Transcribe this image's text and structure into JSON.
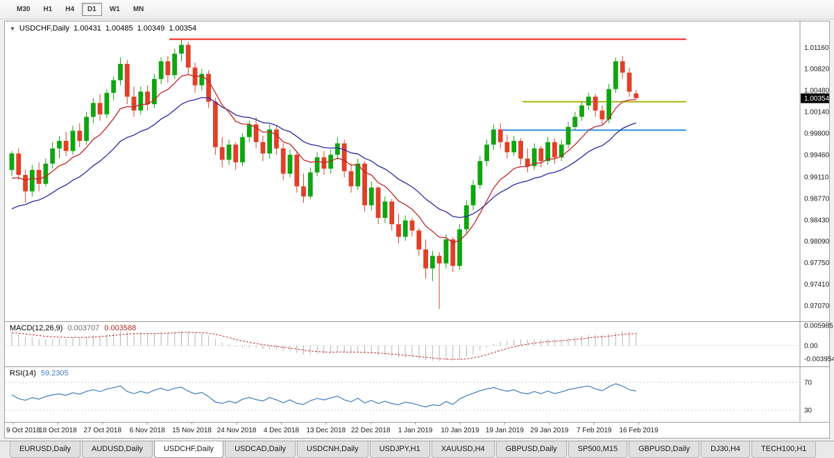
{
  "toolbar": {
    "timeframes": [
      "M30",
      "H1",
      "H4",
      "D1",
      "W1",
      "MN"
    ],
    "active_timeframe": "D1"
  },
  "icons": {
    "chart_marker": "▼"
  },
  "chart": {
    "symbol": "USDCHF,Daily",
    "ohlc": {
      "open": "1.00431",
      "high": "1.00485",
      "low": "1.00349",
      "close": "1.00354"
    },
    "current_price": "1.00354",
    "price_axis": [
      "1.01160",
      "1.00820",
      "1.00480",
      "1.00140",
      "0.99800",
      "0.99460",
      "0.99110",
      "0.98770",
      "0.98430",
      "0.98090",
      "0.97750",
      "0.97410",
      "0.97070"
    ],
    "date_axis": [
      "9 Oct 2018",
      "18 Oct 2018",
      "27 Oct 2018",
      "6 Nov 2018",
      "15 Nov 2018",
      "24 Nov 2018",
      "4 Dec 2018",
      "13 Dec 2018",
      "22 Dec 2018",
      "1 Jan 2019",
      "10 Jan 2019",
      "19 Jan 2019",
      "29 Jan 2019",
      "7 Feb 2019",
      "16 Feb 2019"
    ]
  },
  "indicators": {
    "macd": {
      "label": "MACD(12,26,9)",
      "value_main": "0.003707",
      "value_signal": "0.003588",
      "axis": [
        "0.005985",
        "0.00",
        "-0.003954"
      ]
    },
    "rsi": {
      "label": "RSI(14)",
      "value": "59.2305",
      "axis": [
        "70",
        "30"
      ]
    }
  },
  "tabs": {
    "items": [
      "EURUSD,Daily",
      "AUDUSD,Daily",
      "USDCHF,Daily",
      "USDCAD,Daily",
      "USDCNH,Daily",
      "USDJPY,H1",
      "XAUUSD,H4",
      "GBPUSD,Daily",
      "SP500,M15",
      "GBPUSD,Daily",
      "DJ30,H4",
      "TECH100,H1"
    ],
    "active_index": 2
  },
  "colors": {
    "bull": "#10a510",
    "bear": "#df4028",
    "macd_hist": "#b4b4b4",
    "macd_signal": "#c03030",
    "rsi": "#3f7cba",
    "price_tag_bg": "#000000",
    "price_tag_text": "#ffffff"
  },
  "chart_data": {
    "type": "candlestick",
    "symbol": "USDCHF",
    "timeframe": "Daily",
    "title": "USDCHF,Daily 1.00431 1.00485 1.00349 1.00354",
    "price_range": {
      "top": 1.0135,
      "bottom": 0.969
    },
    "candles": [
      [
        "2018-10-09",
        0.9922,
        0.9952,
        0.9912,
        0.9948
      ],
      [
        "2018-10-10",
        0.9948,
        0.9956,
        0.9906,
        0.9914
      ],
      [
        "2018-10-11",
        0.9914,
        0.9922,
        0.987,
        0.9888
      ],
      [
        "2018-10-12",
        0.9888,
        0.993,
        0.988,
        0.9922
      ],
      [
        "2018-10-15",
        0.9922,
        0.9934,
        0.9888,
        0.99
      ],
      [
        "2018-10-16",
        0.99,
        0.994,
        0.9896,
        0.9932
      ],
      [
        "2018-10-17",
        0.9932,
        0.9966,
        0.9924,
        0.9956
      ],
      [
        "2018-10-18",
        0.9956,
        0.9976,
        0.994,
        0.9968
      ],
      [
        "2018-10-19",
        0.9968,
        0.9982,
        0.9944,
        0.9952
      ],
      [
        "2018-10-22",
        0.9952,
        0.9992,
        0.9946,
        0.9984
      ],
      [
        "2018-10-23",
        0.9984,
        0.9996,
        0.9958,
        0.9968
      ],
      [
        "2018-10-24",
        0.9968,
        1.0014,
        0.9962,
        1.0006
      ],
      [
        "2018-10-25",
        1.0006,
        1.0036,
        0.9996,
        1.0028
      ],
      [
        "2018-10-26",
        1.0028,
        1.0042,
        1.0,
        1.001
      ],
      [
        "2018-10-29",
        1.001,
        1.005,
        1.0004,
        1.0044
      ],
      [
        "2018-10-30",
        1.0044,
        1.007,
        1.0032,
        1.0064
      ],
      [
        "2018-10-31",
        1.0064,
        1.01,
        1.0056,
        1.009
      ],
      [
        "2018-11-01",
        1.009,
        1.0096,
        1.0026,
        1.0038
      ],
      [
        "2018-11-02",
        1.0038,
        1.0054,
        1.0006,
        1.0016
      ],
      [
        "2018-11-05",
        1.0016,
        1.0054,
        1.001,
        1.0046
      ],
      [
        "2018-11-06",
        1.0046,
        1.0056,
        1.0016,
        1.0026
      ],
      [
        "2018-11-07",
        1.0026,
        1.0074,
        1.002,
        1.0066
      ],
      [
        "2018-11-08",
        1.0066,
        1.01,
        1.0058,
        1.0094
      ],
      [
        "2018-11-09",
        1.0094,
        1.0102,
        1.006,
        1.0072
      ],
      [
        "2018-11-12",
        1.0072,
        1.0114,
        1.0066,
        1.0106
      ],
      [
        "2018-11-13",
        1.0106,
        1.0128,
        1.0094,
        1.012
      ],
      [
        "2018-11-14",
        1.012,
        1.0124,
        1.0072,
        1.0084
      ],
      [
        "2018-11-15",
        1.0084,
        1.0092,
        1.0044,
        1.0056
      ],
      [
        "2018-11-16",
        1.0056,
        1.0082,
        1.0048,
        1.0074
      ],
      [
        "2018-11-19",
        1.0074,
        1.008,
        1.002,
        1.003
      ],
      [
        "2018-11-20",
        1.003,
        1.0036,
        0.9946,
        0.9958
      ],
      [
        "2018-11-21",
        0.9958,
        0.9974,
        0.9926,
        0.9938
      ],
      [
        "2018-11-22",
        0.9938,
        0.997,
        0.993,
        0.9962
      ],
      [
        "2018-11-23",
        0.9962,
        0.9966,
        0.9922,
        0.9934
      ],
      [
        "2018-11-26",
        0.9934,
        0.998,
        0.9928,
        0.9974
      ],
      [
        "2018-11-27",
        0.9974,
        1.0,
        0.9966,
        0.9994
      ],
      [
        "2018-11-28",
        0.9994,
        1.0006,
        0.9956,
        0.9966
      ],
      [
        "2018-11-29",
        0.9966,
        0.9976,
        0.9936,
        0.9948
      ],
      [
        "2018-11-30",
        0.9948,
        0.9994,
        0.994,
        0.9986
      ],
      [
        "2018-12-03",
        0.9986,
        0.9992,
        0.9946,
        0.9956
      ],
      [
        "2018-12-04",
        0.9956,
        0.9964,
        0.9906,
        0.9916
      ],
      [
        "2018-12-05",
        0.9916,
        0.9954,
        0.991,
        0.9946
      ],
      [
        "2018-12-06",
        0.9946,
        0.9952,
        0.9886,
        0.9896
      ],
      [
        "2018-12-07",
        0.9896,
        0.9916,
        0.987,
        0.988
      ],
      [
        "2018-12-10",
        0.988,
        0.9926,
        0.9876,
        0.9918
      ],
      [
        "2018-12-11",
        0.9918,
        0.995,
        0.9912,
        0.9942
      ],
      [
        "2018-12-12",
        0.9942,
        0.9952,
        0.9914,
        0.9924
      ],
      [
        "2018-12-13",
        0.9924,
        0.9954,
        0.9916,
        0.9946
      ],
      [
        "2018-12-14",
        0.9946,
        0.9974,
        0.9938,
        0.9964
      ],
      [
        "2018-12-17",
        0.9964,
        0.997,
        0.991,
        0.992
      ],
      [
        "2018-12-18",
        0.992,
        0.9932,
        0.9886,
        0.9896
      ],
      [
        "2018-12-19",
        0.9896,
        0.994,
        0.989,
        0.9932
      ],
      [
        "2018-12-20",
        0.9932,
        0.9936,
        0.9856,
        0.9866
      ],
      [
        "2018-12-21",
        0.9866,
        0.9904,
        0.9858,
        0.9894
      ],
      [
        "2018-12-24",
        0.9894,
        0.9896,
        0.9836,
        0.9846
      ],
      [
        "2018-12-26",
        0.9846,
        0.988,
        0.9838,
        0.9872
      ],
      [
        "2018-12-27",
        0.9872,
        0.9876,
        0.9826,
        0.9836
      ],
      [
        "2018-12-28",
        0.9836,
        0.9852,
        0.9806,
        0.9816
      ],
      [
        "2018-12-31",
        0.9816,
        0.985,
        0.981,
        0.9842
      ],
      [
        "2019-01-01",
        0.9842,
        0.9846,
        0.9816,
        0.9826
      ],
      [
        "2019-01-02",
        0.9826,
        0.983,
        0.9786,
        0.9796
      ],
      [
        "2019-01-03",
        0.9796,
        0.9812,
        0.975,
        0.9766
      ],
      [
        "2019-01-04",
        0.9766,
        0.9794,
        0.9746,
        0.9786
      ],
      [
        "2019-01-07",
        0.9786,
        0.9792,
        0.9702,
        0.9774
      ],
      [
        "2019-01-08",
        0.9774,
        0.982,
        0.9766,
        0.9812
      ],
      [
        "2019-01-09",
        0.9812,
        0.9816,
        0.976,
        0.977
      ],
      [
        "2019-01-10",
        0.977,
        0.9836,
        0.9764,
        0.9828
      ],
      [
        "2019-01-11",
        0.9828,
        0.9874,
        0.9822,
        0.9866
      ],
      [
        "2019-01-14",
        0.9866,
        0.9906,
        0.9858,
        0.9898
      ],
      [
        "2019-01-15",
        0.9898,
        0.9944,
        0.9892,
        0.9936
      ],
      [
        "2019-01-16",
        0.9936,
        0.997,
        0.9928,
        0.9962
      ],
      [
        "2019-01-17",
        0.9962,
        0.9994,
        0.9954,
        0.9986
      ],
      [
        "2019-01-18",
        0.9986,
        0.9996,
        0.9956,
        0.9966
      ],
      [
        "2019-01-21",
        0.9966,
        0.9978,
        0.994,
        0.995
      ],
      [
        "2019-01-22",
        0.995,
        0.9976,
        0.9944,
        0.9968
      ],
      [
        "2019-01-23",
        0.9968,
        0.9972,
        0.993,
        0.994
      ],
      [
        "2019-01-24",
        0.994,
        0.9956,
        0.9918,
        0.9928
      ],
      [
        "2019-01-25",
        0.9928,
        0.9964,
        0.9922,
        0.9956
      ],
      [
        "2019-01-28",
        0.9956,
        0.996,
        0.9926,
        0.9936
      ],
      [
        "2019-01-29",
        0.9936,
        0.9974,
        0.993,
        0.9966
      ],
      [
        "2019-01-30",
        0.9966,
        0.9972,
        0.9932,
        0.9942
      ],
      [
        "2019-01-31",
        0.9942,
        0.997,
        0.9936,
        0.9962
      ],
      [
        "2019-02-01",
        0.9962,
        0.9998,
        0.9956,
        0.999
      ],
      [
        "2019-02-04",
        0.999,
        1.0014,
        0.9984,
        1.0006
      ],
      [
        "2019-02-05",
        1.0006,
        1.003,
        1.0,
        1.0024
      ],
      [
        "2019-02-06",
        1.0024,
        1.0044,
        1.0016,
        1.0038
      ],
      [
        "2019-02-07",
        1.0038,
        1.0042,
        1.0006,
        1.0016
      ],
      [
        "2019-02-08",
        1.0016,
        1.0024,
        0.9994,
        1.0002
      ],
      [
        "2019-02-11",
        1.0002,
        1.0058,
        0.9996,
        1.005
      ],
      [
        "2019-02-12",
        1.005,
        1.01,
        1.0044,
        1.0094
      ],
      [
        "2019-02-13",
        1.0094,
        1.0102,
        1.0066,
        1.0076
      ],
      [
        "2019-02-14",
        1.0076,
        1.0084,
        1.0038,
        1.0046
      ],
      [
        "2019-02-15",
        1.00431,
        1.00485,
        1.00349,
        1.00354
      ]
    ],
    "overlays": {
      "ma_fast": {
        "period": 10,
        "seed": 0.99,
        "color": "#c22323"
      },
      "ma_slow": {
        "period": 22,
        "seed": 0.9852,
        "color": "#2727a3"
      },
      "hlines": [
        {
          "price": 1.0129,
          "color": "#f2221a",
          "from_frac": 0.207,
          "to_frac": 0.857
        },
        {
          "price": 1.003,
          "color": "#a9b408",
          "from_frac": 0.651,
          "to_frac": 0.857
        },
        {
          "price": 0.9985,
          "color": "#2e8de0",
          "from_frac": 0.625,
          "to_frac": 0.857
        }
      ]
    },
    "macd": {
      "fast": 12,
      "slow": 26,
      "signal": 9,
      "seed_fast": 0.994,
      "seed_slow": 0.99,
      "last_main": 0.003707,
      "last_signal": 0.003588,
      "axis_max": 0.005985,
      "axis_min": -0.003954
    },
    "rsi": {
      "period": 14,
      "last": 59.2305,
      "levels": [
        70,
        30
      ]
    }
  }
}
